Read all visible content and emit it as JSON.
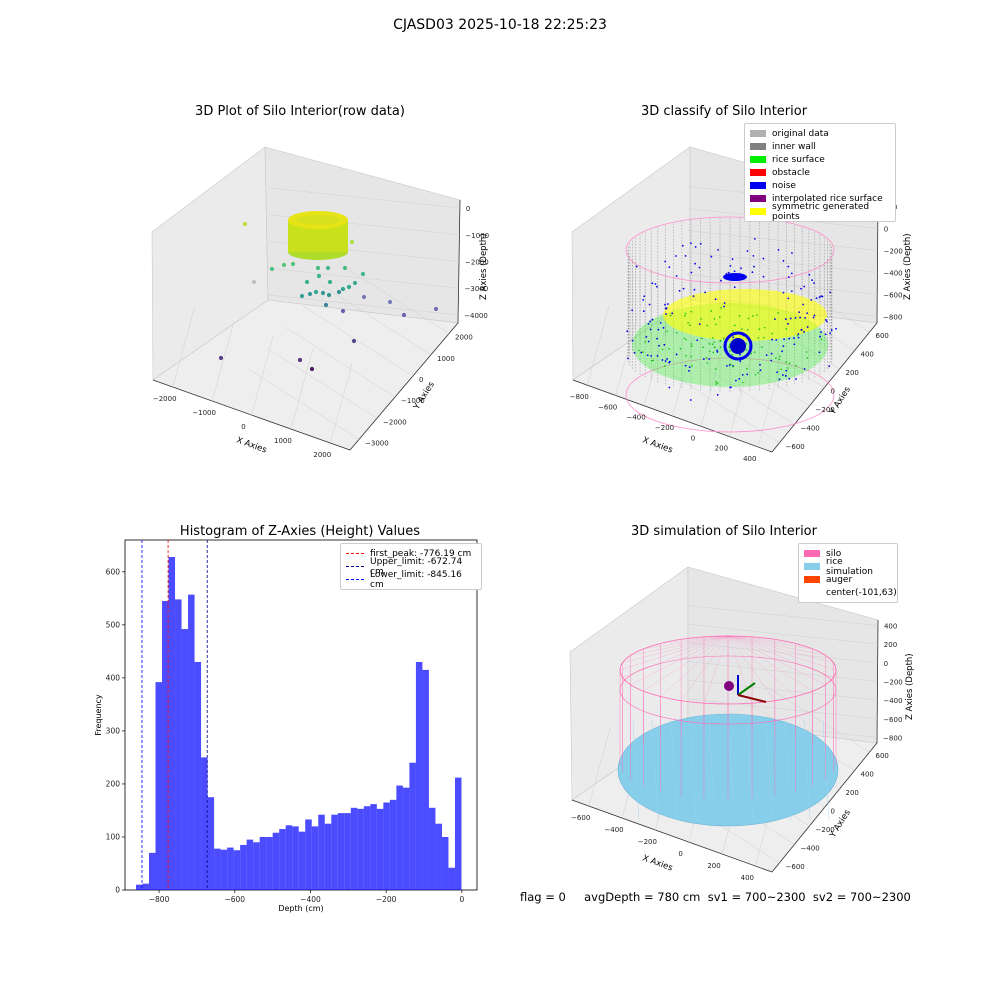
{
  "figure": {
    "suptitle": "CJASD03 2025-10-18 22:25:23"
  },
  "panel_raw": {
    "title": "3D Plot of Silo Interior(row data)",
    "xlabel": "X Axies",
    "ylabel": "Y Axies",
    "zlabel": "Z Axies (Depth)",
    "x_ticks": [
      "−2000",
      "−1000",
      "0",
      "1000",
      "2000"
    ],
    "y_ticks": [
      "−3000",
      "−2000",
      "−1000",
      "0",
      "1000",
      "2000"
    ],
    "z_ticks": [
      "0",
      "−1000",
      "−2000",
      "−3000",
      "−4000"
    ]
  },
  "panel_classify": {
    "title": "3D classify of Silo Interior",
    "xlabel": "X Axies",
    "ylabel": "Y Axies",
    "zlabel": "Z Axies (Depth)",
    "x_ticks": [
      "−800",
      "−600",
      "−400",
      "−200",
      "0",
      "200",
      "400"
    ],
    "y_ticks": [
      "−600",
      "−400",
      "−200",
      "0",
      "200",
      "400",
      "600"
    ],
    "z_ticks": [
      "200",
      "0",
      "−200",
      "−400",
      "−600",
      "−800"
    ],
    "legend": [
      {
        "label": "original data",
        "color": "#b0b0b0"
      },
      {
        "label": "inner wall",
        "color": "#808080"
      },
      {
        "label": "rice surface",
        "color": "#00ee00"
      },
      {
        "label": "obstacle",
        "color": "#ff0000"
      },
      {
        "label": "noise",
        "color": "#0000ee"
      },
      {
        "label": "interpolated rice surface",
        "color": "#800080"
      },
      {
        "label": "symmetric generated points",
        "color": "#ffff00"
      }
    ]
  },
  "panel_sim": {
    "title": "3D simulation of Silo Interior",
    "xlabel": "X Axies",
    "ylabel": "Y Axies",
    "zlabel": "Z Axies (Depth)",
    "x_ticks": [
      "−600",
      "−400",
      "−200",
      "0",
      "200",
      "400"
    ],
    "y_ticks": [
      "−600",
      "−400",
      "−200",
      "0",
      "200",
      "400",
      "600"
    ],
    "z_ticks": [
      "400",
      "200",
      "0",
      "−200",
      "−400",
      "−600",
      "−800"
    ],
    "legend": [
      {
        "label": "silo",
        "color": "#ff69b4"
      },
      {
        "label": "rice simulation",
        "color": "#87ceeb"
      },
      {
        "label": "auger",
        "color": "#ff4500"
      },
      {
        "label": "center(-101,63)",
        "color": ""
      }
    ]
  },
  "status": {
    "text": "flag = 0     avgDepth = 780 cm  sv1 = 700~2300  sv2 = 700~2300"
  },
  "chart_data": [
    {
      "type": "scatter",
      "title": "3D Plot of Silo Interior(row data)",
      "xlabel": "X Axies",
      "ylabel": "Y Axies",
      "zlabel": "Z Axies (Depth)",
      "xlim": [
        -2500,
        2500
      ],
      "ylim": [
        -3000,
        2500
      ],
      "zlim": [
        -4300,
        0
      ]
    },
    {
      "type": "scatter",
      "title": "3D classify of Silo Interior",
      "xlabel": "X Axies",
      "ylabel": "Y Axies",
      "zlabel": "Z Axies (Depth)",
      "xlim": [
        -800,
        500
      ],
      "ylim": [
        -600,
        650
      ],
      "zlim": [
        -900,
        250
      ],
      "legend_position": "top-right"
    },
    {
      "type": "bar",
      "title": "Histogram of Z-Axies (Height) Values",
      "xlabel": "Depth (cm)",
      "ylabel": "Frequency",
      "xlim": [
        -890,
        40
      ],
      "ylim": [
        0,
        660
      ],
      "x_ticks": [
        -800,
        -600,
        -400,
        -200,
        0
      ],
      "y_ticks": [
        0,
        100,
        200,
        300,
        400,
        500,
        600
      ],
      "bin_start": -861,
      "bin_width": 17.2,
      "values": [
        10,
        12,
        70,
        392,
        545,
        628,
        548,
        492,
        557,
        430,
        250,
        175,
        78,
        76,
        80,
        75,
        85,
        95,
        90,
        100,
        100,
        108,
        115,
        122,
        120,
        110,
        133,
        120,
        142,
        125,
        142,
        145,
        145,
        155,
        153,
        158,
        162,
        153,
        165,
        170,
        197,
        193,
        240,
        430,
        415,
        155,
        125,
        100,
        42,
        212
      ],
      "color": "#0000ff",
      "lines": [
        {
          "label": "first_peak: -776.19 cm",
          "x": -776.19,
          "color": "#ff0000"
        },
        {
          "label": "Upper_limit: -672.74 cm",
          "x": -672.74,
          "color": "#00008b"
        },
        {
          "label": "Lower_limit: -845.16 cm",
          "x": -845.16,
          "color": "#0000ff"
        }
      ],
      "legend_position": "top-right"
    },
    {
      "type": "scatter",
      "title": "3D simulation of Silo Interior",
      "xlabel": "X Axies",
      "ylabel": "Y Axies",
      "zlabel": "Z Axies (Depth)",
      "xlim": [
        -700,
        500
      ],
      "ylim": [
        -650,
        650
      ],
      "zlim": [
        -900,
        450
      ],
      "legend_position": "top-right"
    }
  ]
}
